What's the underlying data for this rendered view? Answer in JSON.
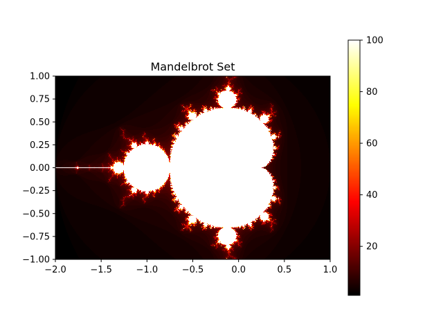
{
  "chart_data": [
    {
      "type": "heatmap",
      "title": "Mandelbrot Set",
      "xlim": [
        -2.0,
        1.0
      ],
      "ylim": [
        -1.0,
        1.0
      ],
      "x_ticks": [
        -2.0,
        -1.5,
        -1.0,
        -0.5,
        0.0,
        0.5,
        1.0
      ],
      "x_tick_labels": [
        "−2.0",
        "−1.5",
        "−1.0",
        "−0.5",
        "0.0",
        "0.5",
        "1.0"
      ],
      "y_ticks": [
        1.0,
        0.75,
        0.5,
        0.25,
        0.0,
        -0.25,
        -0.5,
        -0.75,
        -1.0
      ],
      "y_tick_labels": [
        "1.00",
        "0.75",
        "0.50",
        "0.25",
        "0.00",
        "−0.25",
        "−0.50",
        "−0.75",
        "−1.00"
      ],
      "colormap": "hot",
      "max_iterations": 100,
      "xlabel": "",
      "ylabel": ""
    },
    {
      "type": "colorbar",
      "colormap": "hot",
      "range": [
        1,
        100
      ],
      "ticks": [
        20,
        40,
        60,
        80,
        100
      ],
      "tick_labels": [
        "20",
        "40",
        "60",
        "80",
        "100"
      ],
      "label": ""
    }
  ]
}
